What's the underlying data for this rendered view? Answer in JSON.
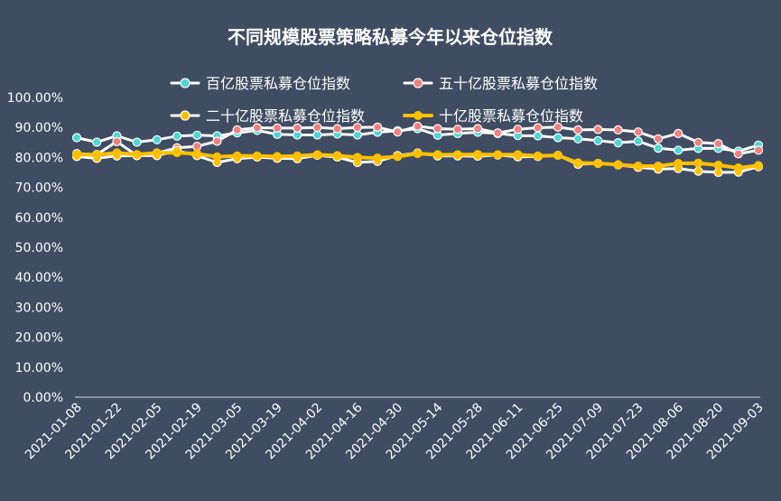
{
  "chart_data": {
    "type": "line",
    "title": "不同规模股票策略私募今年以来仓位指数",
    "xlabel": "",
    "ylabel": "",
    "ylim": [
      0,
      100
    ],
    "y_ticks": [
      "0.00%",
      "10.00%",
      "20.00%",
      "30.00%",
      "40.00%",
      "50.00%",
      "60.00%",
      "70.00%",
      "80.00%",
      "90.00%",
      "100.00%"
    ],
    "x_tick_labels": [
      "2021-01-08",
      "2021-01-22",
      "2021-02-05",
      "2021-02-19",
      "2021-03-05",
      "2021-03-19",
      "2021-04-02",
      "2021-04-16",
      "2021-04-30",
      "2021-05-14",
      "2021-05-28",
      "2021-06-11",
      "2021-06-25",
      "2021-07-09",
      "2021-07-23",
      "2021-08-06",
      "2021-08-20",
      "2021-09-03"
    ],
    "x": [
      "2021-01-08",
      "2021-01-15",
      "2021-01-22",
      "2021-01-29",
      "2021-02-05",
      "2021-02-12",
      "2021-02-19",
      "2021-02-26",
      "2021-03-05",
      "2021-03-12",
      "2021-03-19",
      "2021-03-26",
      "2021-04-02",
      "2021-04-09",
      "2021-04-16",
      "2021-04-23",
      "2021-04-30",
      "2021-05-07",
      "2021-05-14",
      "2021-05-21",
      "2021-05-28",
      "2021-06-04",
      "2021-06-11",
      "2021-06-18",
      "2021-06-25",
      "2021-07-02",
      "2021-07-09",
      "2021-07-16",
      "2021-07-23",
      "2021-07-30",
      "2021-08-06",
      "2021-08-13",
      "2021-08-20",
      "2021-08-27",
      "2021-09-03"
    ],
    "grid": false,
    "legend_position": "top",
    "series": [
      {
        "name": "百亿股票私募仓位指数",
        "color": "#ffffff",
        "marker": "#4dd6d6",
        "values": [
          86.6,
          85.1,
          87.2,
          85.1,
          85.9,
          87.1,
          87.4,
          87.2,
          88.2,
          89.0,
          87.7,
          87.5,
          87.5,
          87.8,
          87.5,
          88.4,
          88.9,
          89.6,
          87.4,
          88.0,
          88.4,
          88.0,
          87.3,
          87.2,
          86.6,
          86.2,
          85.6,
          84.9,
          85.4,
          83.1,
          82.4,
          83.0,
          83.0,
          82.1,
          84.1
        ]
      },
      {
        "name": "五十亿股票私募仓位指数",
        "color": "#ffffff",
        "marker": "#f08080",
        "values": [
          81.3,
          81.0,
          85.3,
          80.6,
          81.5,
          83.2,
          83.7,
          85.4,
          89.2,
          89.9,
          89.8,
          89.8,
          90.0,
          89.6,
          90.0,
          90.1,
          88.5,
          90.4,
          89.6,
          89.4,
          89.6,
          88.2,
          89.4,
          89.9,
          90.1,
          89.2,
          89.3,
          89.2,
          88.5,
          86.2,
          88.0,
          85.0,
          84.6,
          81.2,
          82.4
        ]
      },
      {
        "name": "二十亿股票私募仓位指数",
        "color": "#ffffff",
        "marker": "#ffc000",
        "values": [
          80.3,
          79.7,
          80.5,
          80.6,
          80.6,
          82.3,
          80.6,
          78.3,
          79.6,
          80.1,
          79.7,
          79.6,
          80.7,
          80.1,
          78.3,
          78.7,
          80.6,
          81.5,
          80.5,
          80.5,
          80.4,
          80.8,
          80.2,
          80.3,
          80.7,
          77.7,
          78.0,
          77.5,
          76.7,
          76.1,
          76.3,
          75.4,
          75.0,
          75.1,
          76.9
        ]
      },
      {
        "name": "十亿股票私募仓位指数",
        "color": "#ffc000",
        "marker": "#ffc000",
        "values": [
          81.0,
          80.9,
          81.5,
          81.0,
          81.5,
          81.6,
          81.2,
          80.2,
          80.5,
          80.5,
          80.3,
          80.5,
          80.9,
          80.6,
          80.0,
          79.8,
          80.3,
          81.3,
          80.9,
          80.9,
          81.0,
          80.9,
          80.9,
          80.5,
          80.7,
          78.2,
          78.0,
          77.6,
          77.1,
          77.1,
          78.0,
          78.1,
          77.4,
          76.5,
          77.3
        ]
      }
    ]
  }
}
